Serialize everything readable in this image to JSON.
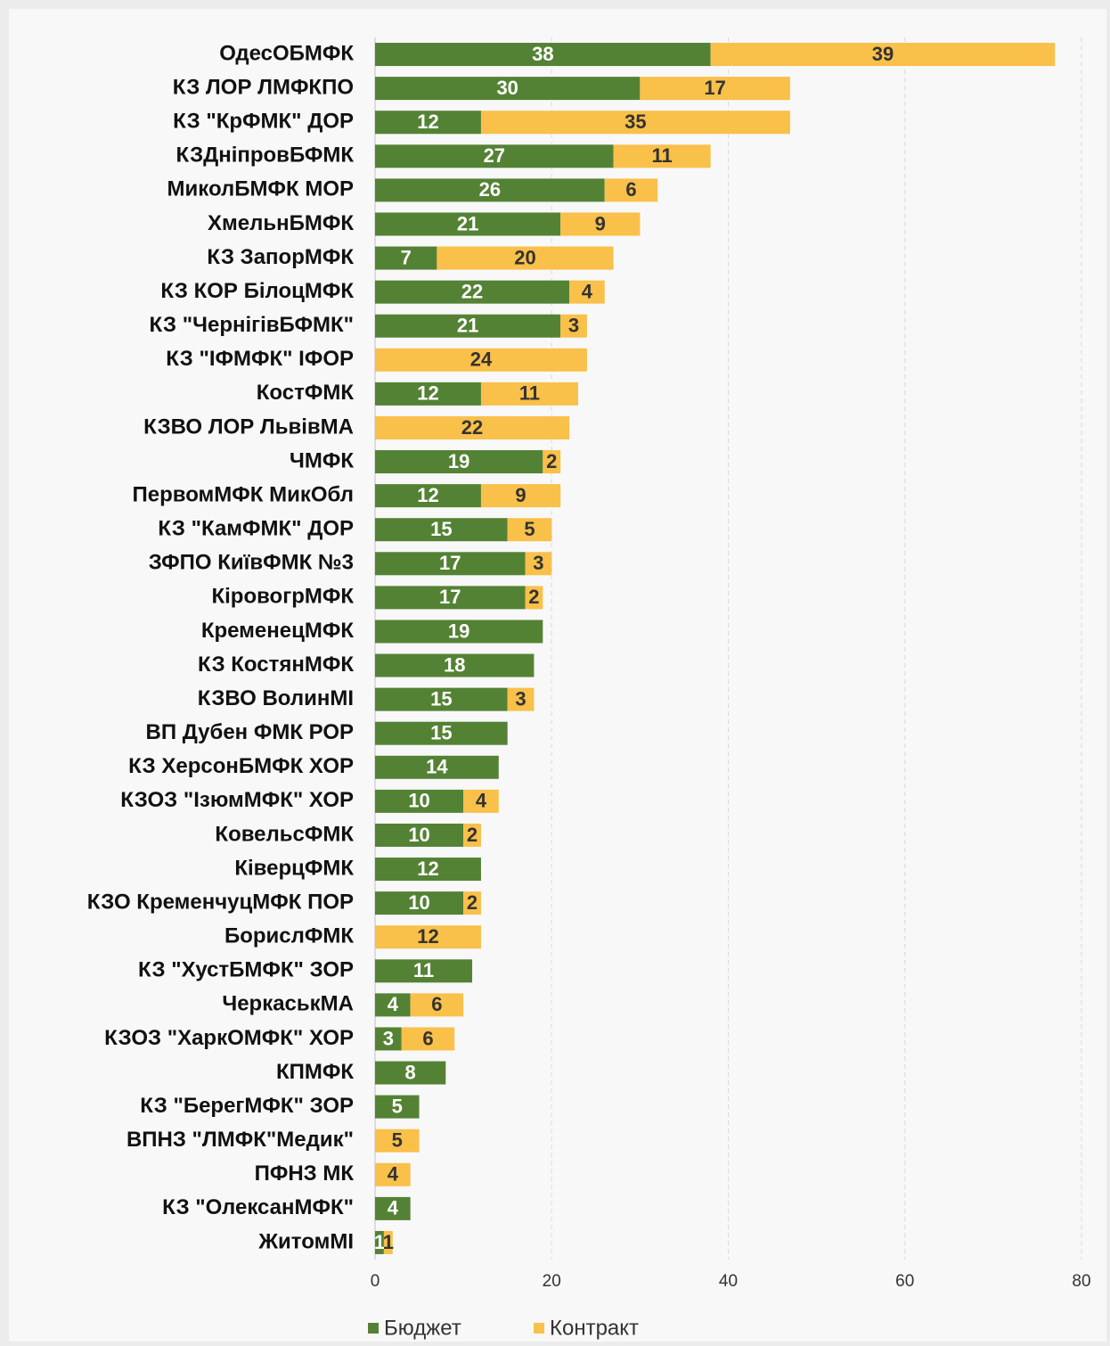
{
  "chart_data": {
    "type": "stacked_bar_horizontal",
    "categories": [
      "ОдесОБМФК",
      "КЗ ЛОР ЛМФКПО",
      "КЗ \"КрФМК\" ДОР",
      "КЗДніпровБФМК",
      "МиколБМФК МОР",
      "ХмельнБМФК",
      "КЗ ЗапорМФК",
      "КЗ КОР БілоцМФК",
      "КЗ \"ЧернігівБФМК\"",
      "КЗ \"ІФМФК\" ІФОР",
      "КостФМК",
      "КЗВО ЛОР ЛьвівМА",
      "ЧМФК",
      "ПервомМФК МикОбл",
      "КЗ \"КамФМК\" ДОР",
      "ЗФПО КиївФМК №3",
      "КіровогрМФК",
      "КременецМФК",
      "КЗ КостянМФК",
      "КЗВО ВолинМІ",
      "ВП Дубен ФМК РОР",
      "КЗ ХерсонБМФК ХОР",
      "КЗОЗ \"ІзюмМФК\" ХОР",
      "КовельсФМК",
      "КіверцФМК",
      "КЗО КременчуцМФК ПОР",
      "БорислФМК",
      "КЗ \"ХустБМФК\" ЗОР",
      "ЧеркаськМА",
      "КЗОЗ \"ХаркОМФК\" ХОР",
      "КПМФК",
      "КЗ \"БерегМФК\" ЗОР",
      "ВПНЗ \"ЛМФК\"Медик\"",
      "ПФНЗ МК",
      "КЗ \"ОлексанМФК\"",
      "ЖитомМІ"
    ],
    "series": [
      {
        "name": "Бюджет",
        "color": "#548235",
        "values": [
          38,
          30,
          12,
          27,
          26,
          21,
          7,
          22,
          21,
          null,
          12,
          null,
          19,
          12,
          15,
          17,
          17,
          19,
          18,
          15,
          15,
          14,
          10,
          10,
          12,
          10,
          null,
          11,
          4,
          3,
          8,
          5,
          null,
          null,
          4,
          1
        ]
      },
      {
        "name": "Контракт",
        "color": "#f9c04a",
        "values": [
          39,
          17,
          35,
          11,
          6,
          9,
          20,
          4,
          3,
          24,
          11,
          22,
          2,
          9,
          5,
          3,
          2,
          null,
          null,
          3,
          null,
          null,
          4,
          2,
          null,
          2,
          12,
          null,
          6,
          6,
          null,
          null,
          5,
          4,
          null,
          1
        ]
      }
    ],
    "xlim": [
      0,
      80
    ],
    "xticks": [
      0,
      20,
      40,
      60,
      80
    ],
    "grid": true,
    "legend": "bottom"
  }
}
